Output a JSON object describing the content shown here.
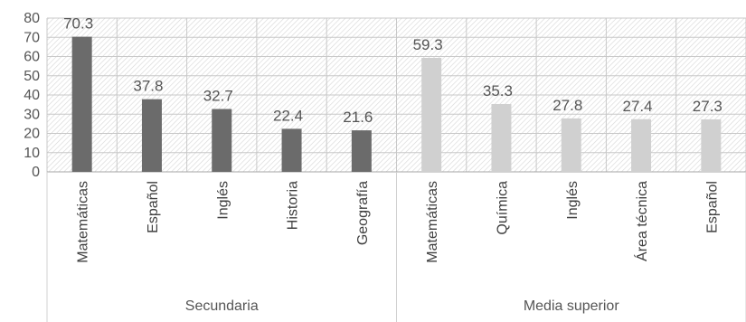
{
  "chart_data": {
    "type": "bar",
    "title": "",
    "xlabel": "",
    "ylabel": "",
    "ylim": [
      0,
      80
    ],
    "yticks": [
      0,
      10,
      20,
      30,
      40,
      50,
      60,
      70,
      80
    ],
    "grid": true,
    "legend": "none",
    "groups": [
      {
        "name": "Secundaria",
        "color": "#6b6b6b",
        "categories": [
          "Matemáticas",
          "Español",
          "Inglés",
          "Historia",
          "Geografía"
        ],
        "values": [
          70.3,
          37.8,
          32.7,
          22.4,
          21.6
        ],
        "labels": [
          "70.3",
          "37.8",
          "32.7",
          "22.4",
          "21.6"
        ]
      },
      {
        "name": "Media superior",
        "color": "#d0d0d0",
        "categories": [
          "Matemáticas",
          "Química",
          "Inglés",
          "Área técnica",
          "Español"
        ],
        "values": [
          59.3,
          35.3,
          27.8,
          27.4,
          27.3
        ],
        "labels": [
          "59.3",
          "35.3",
          "27.8",
          "27.4",
          "27.3"
        ]
      }
    ]
  }
}
